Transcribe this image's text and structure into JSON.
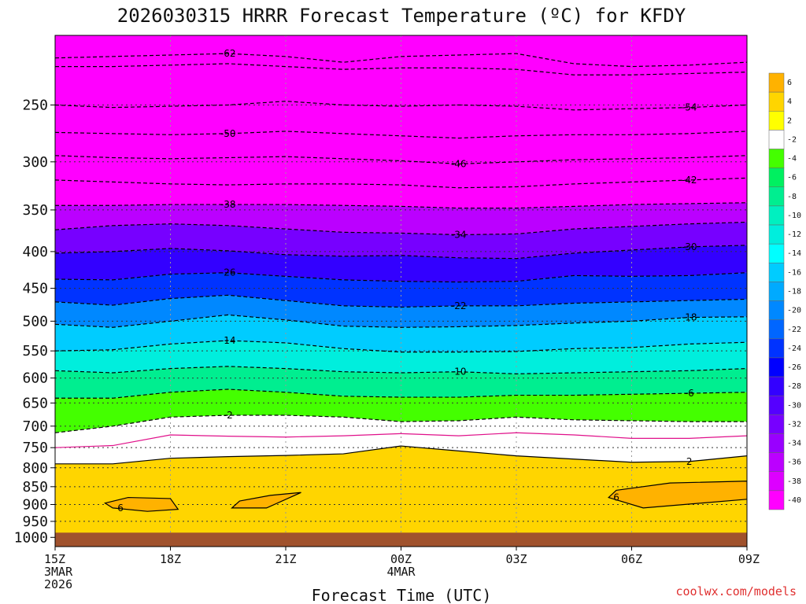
{
  "title": "2026030315 HRRR Forecast Temperature (ºC) for KFDY",
  "credit": "coolwx.com/models",
  "chart_data": {
    "type": "contour",
    "title": "2026030315 HRRR Forecast Temperature (ºC) for KFDY",
    "xlabel": "Forecast Time (UTC)",
    "ylabel": "",
    "x_ticks": [
      {
        "label": "15Z",
        "sub1": "3MAR",
        "sub2": "2026",
        "hours": 0
      },
      {
        "label": "18Z",
        "sub1": "",
        "sub2": "",
        "hours": 3
      },
      {
        "label": "21Z",
        "sub1": "",
        "sub2": "",
        "hours": 6
      },
      {
        "label": "00Z",
        "sub1": "4MAR",
        "sub2": "",
        "hours": 9
      },
      {
        "label": "03Z",
        "sub1": "",
        "sub2": "",
        "hours": 12
      },
      {
        "label": "06Z",
        "sub1": "",
        "sub2": "",
        "hours": 15
      },
      {
        "label": "09Z",
        "sub1": "",
        "sub2": "",
        "hours": 18
      }
    ],
    "xlim_hours": [
      0,
      18
    ],
    "y_ticks": [
      "250",
      "300",
      "350",
      "400",
      "450",
      "500",
      "550",
      "600",
      "650",
      "700",
      "750",
      "800",
      "850",
      "900",
      "950",
      "1000"
    ],
    "ylim_hpa": [
      200,
      1030
    ],
    "y_scale": "log",
    "colorbar": {
      "levels": [
        "6",
        "4",
        "2",
        "-2",
        "-4",
        "-6",
        "-8",
        "-10",
        "-12",
        "-14",
        "-16",
        "-18",
        "-20",
        "-22",
        "-24",
        "-26",
        "-28",
        "-30",
        "-32",
        "-34",
        "-36",
        "-38",
        "-40"
      ],
      "colors": [
        "#ffb200",
        "#ffd500",
        "#ffff00",
        "#ffffff",
        "#44ff00",
        "#00f060",
        "#00ee90",
        "#00f0c0",
        "#00eedd",
        "#00ffff",
        "#00ccff",
        "#00aaff",
        "#0088ff",
        "#0066ff",
        "#0033ff",
        "#0000ff",
        "#3300ff",
        "#5500ff",
        "#7700ff",
        "#9900ff",
        "#bb00ff",
        "#dd00ff",
        "#ff00ff"
      ]
    },
    "isotherms": [
      {
        "value": -62,
        "label": "-62",
        "p": [
          215,
          214,
          213,
          212,
          214,
          218,
          214,
          213,
          212,
          219,
          221,
          220,
          218
        ]
      },
      {
        "value": -58,
        "label": "",
        "p": [
          221,
          221,
          220,
          219,
          221,
          223,
          222,
          222,
          223,
          227,
          227,
          226,
          225
        ]
      },
      {
        "value": -54,
        "label": "-54",
        "p": [
          250,
          252,
          251,
          250,
          247,
          250,
          251,
          250,
          251,
          254,
          253,
          252,
          250
        ]
      },
      {
        "value": -50,
        "label": "-50",
        "p": [
          273,
          274,
          275,
          274,
          272,
          274,
          276,
          278,
          276,
          275,
          275,
          274,
          272
        ]
      },
      {
        "value": -46,
        "label": "-46",
        "p": [
          294,
          296,
          297,
          296,
          295,
          297,
          299,
          302,
          300,
          298,
          297,
          296,
          294
        ]
      },
      {
        "value": -42,
        "label": "-42",
        "p": [
          318,
          320,
          322,
          323,
          322,
          322,
          323,
          326,
          325,
          322,
          320,
          318,
          316
        ]
      },
      {
        "value": -38,
        "label": "-38",
        "p": [
          345,
          345,
          344,
          344,
          344,
          345,
          346,
          348,
          348,
          346,
          344,
          343,
          342
        ]
      },
      {
        "value": -34,
        "label": "-34",
        "p": [
          373,
          368,
          366,
          368,
          372,
          376,
          377,
          379,
          378,
          372,
          369,
          366,
          364
        ]
      },
      {
        "value": -30,
        "label": "-30",
        "p": [
          402,
          400,
          396,
          399,
          404,
          406,
          405,
          408,
          409,
          402,
          398,
          394,
          392
        ]
      },
      {
        "value": -26,
        "label": "-26",
        "p": [
          437,
          438,
          430,
          428,
          433,
          438,
          440,
          441,
          440,
          432,
          433,
          432,
          428
        ]
      },
      {
        "value": -22,
        "label": "-22",
        "p": [
          470,
          475,
          465,
          460,
          468,
          476,
          478,
          476,
          476,
          472,
          470,
          468,
          466
        ]
      },
      {
        "value": -18,
        "label": "-18",
        "p": [
          505,
          510,
          500,
          490,
          498,
          508,
          510,
          509,
          507,
          503,
          500,
          494,
          493
        ]
      },
      {
        "value": -14,
        "label": "-14",
        "p": [
          550,
          548,
          538,
          532,
          536,
          546,
          552,
          552,
          551,
          546,
          544,
          538,
          535
        ]
      },
      {
        "value": -10,
        "label": "-10",
        "p": [
          586,
          590,
          582,
          578,
          582,
          588,
          590,
          588,
          592,
          590,
          588,
          586,
          582
        ]
      },
      {
        "value": -6,
        "label": "-6",
        "p": [
          640,
          640,
          628,
          622,
          628,
          636,
          638,
          638,
          634,
          634,
          632,
          630,
          628
        ]
      },
      {
        "value": -2,
        "label": "-2",
        "p": [
          715,
          700,
          680,
          676,
          676,
          680,
          690,
          688,
          680,
          686,
          688,
          690,
          690
        ]
      },
      {
        "value": 0,
        "label": "",
        "p": [
          750,
          745,
          720,
          723,
          725,
          722,
          717,
          722,
          715,
          720,
          728,
          728,
          722
        ]
      },
      {
        "value": 2,
        "label": "2",
        "p": [
          790,
          790,
          776,
          772,
          769,
          765,
          746,
          758,
          770,
          778,
          786,
          784,
          770
        ]
      }
    ],
    "closed_contours": [
      {
        "value": 6,
        "label": "6",
        "hours": [
          1.3,
          1.9,
          3.0,
          3.2,
          2.4,
          1.5
        ],
        "p": [
          896,
          880,
          883,
          914,
          920,
          910
        ]
      },
      {
        "value": 6,
        "label": "",
        "hours": [
          4.8,
          5.6,
          6.4,
          5.5,
          4.6
        ],
        "p": [
          890,
          874,
          866,
          910,
          910
        ]
      },
      {
        "value": 6,
        "label": "6",
        "hours": [
          14.6,
          16.0,
          18.0,
          18.0,
          15.3,
          14.4
        ],
        "p": [
          860,
          840,
          835,
          885,
          910,
          880
        ]
      }
    ],
    "ground_level_hpa": 985
  }
}
